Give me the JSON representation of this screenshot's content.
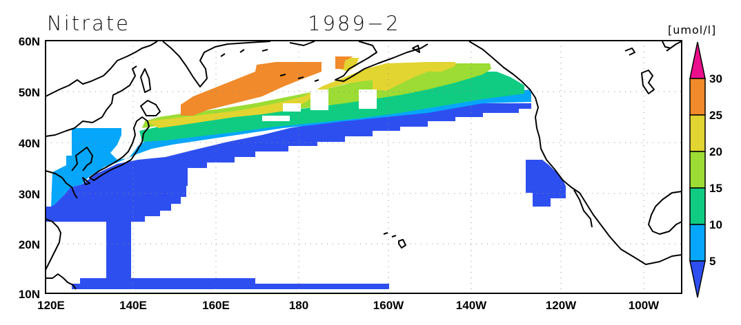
{
  "title": {
    "variable": "Nitrate",
    "date": "1989−2"
  },
  "units": "[umol/l]",
  "map": {
    "lon_range": [
      "120E",
      "90W"
    ],
    "lat_range": [
      "10N",
      "60N"
    ],
    "lon_ticks": [
      "120E",
      "140E",
      "160E",
      "180",
      "160W",
      "140W",
      "120W",
      "100W"
    ],
    "lat_ticks": [
      "60N",
      "50N",
      "40N",
      "30N",
      "20N",
      "10N"
    ],
    "gridlines": true
  },
  "colorbar": {
    "levels": [
      "5",
      "10",
      "15",
      "20",
      "25",
      "30"
    ],
    "colors": [
      "#2e4fef",
      "#06a6fa",
      "#10cc82",
      "#9cdc34",
      "#e2d431",
      "#f08a2a",
      "#ea0f8c"
    ],
    "extend": "both"
  },
  "chart_data": {
    "type": "heatmap",
    "title": "Nitrate 1989−2",
    "units": "umol/l",
    "x_range": [
      "120E",
      "90W"
    ],
    "y_range": [
      "10N",
      "60N"
    ],
    "contour_levels": [
      5,
      10,
      15,
      20,
      25,
      30
    ],
    "grid": true,
    "legend": "right"
  }
}
